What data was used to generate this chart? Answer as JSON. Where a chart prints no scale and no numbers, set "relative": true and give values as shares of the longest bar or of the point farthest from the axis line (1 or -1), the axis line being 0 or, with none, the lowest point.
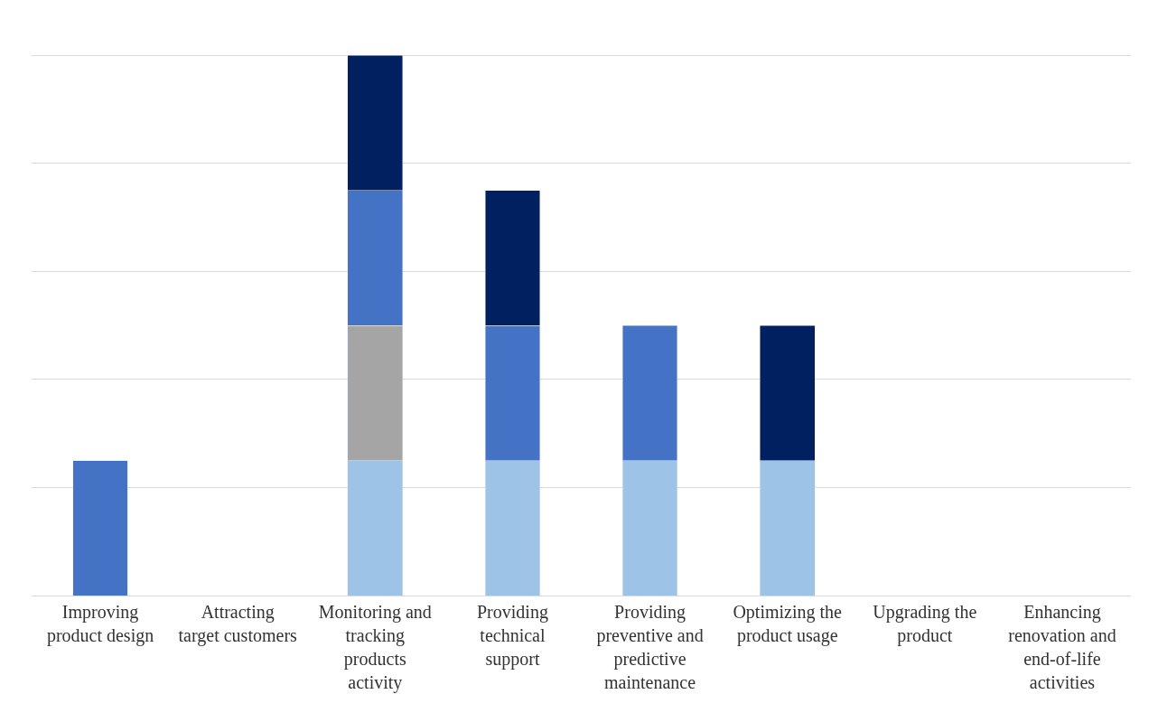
{
  "chart_data": {
    "type": "bar",
    "stacked": true,
    "relative": true,
    "grid": "y",
    "categories": [
      "Improving product design",
      "Attracting target customers",
      "Monitoring and tracking products activity",
      "Providing technical support",
      "Providing preventive and predictive maintenance",
      "Optimizing the product usage",
      "Upgrading the product",
      "Enhancing renovation and end-of-life activities"
    ],
    "series": [
      {
        "color": "#9dc3e6",
        "values": [
          null,
          null,
          0.25,
          0.25,
          0.25,
          0.25,
          null,
          null
        ]
      },
      {
        "color": "#a5a5a5",
        "values": [
          null,
          null,
          0.25,
          null,
          null,
          null,
          null,
          null
        ]
      },
      {
        "color": "#4472c4",
        "values": [
          0.25,
          null,
          0.25,
          0.25,
          0.25,
          null,
          null,
          null
        ]
      },
      {
        "color": "#002060",
        "values": [
          null,
          null,
          0.25,
          0.25,
          null,
          0.25,
          null,
          null
        ]
      }
    ]
  }
}
